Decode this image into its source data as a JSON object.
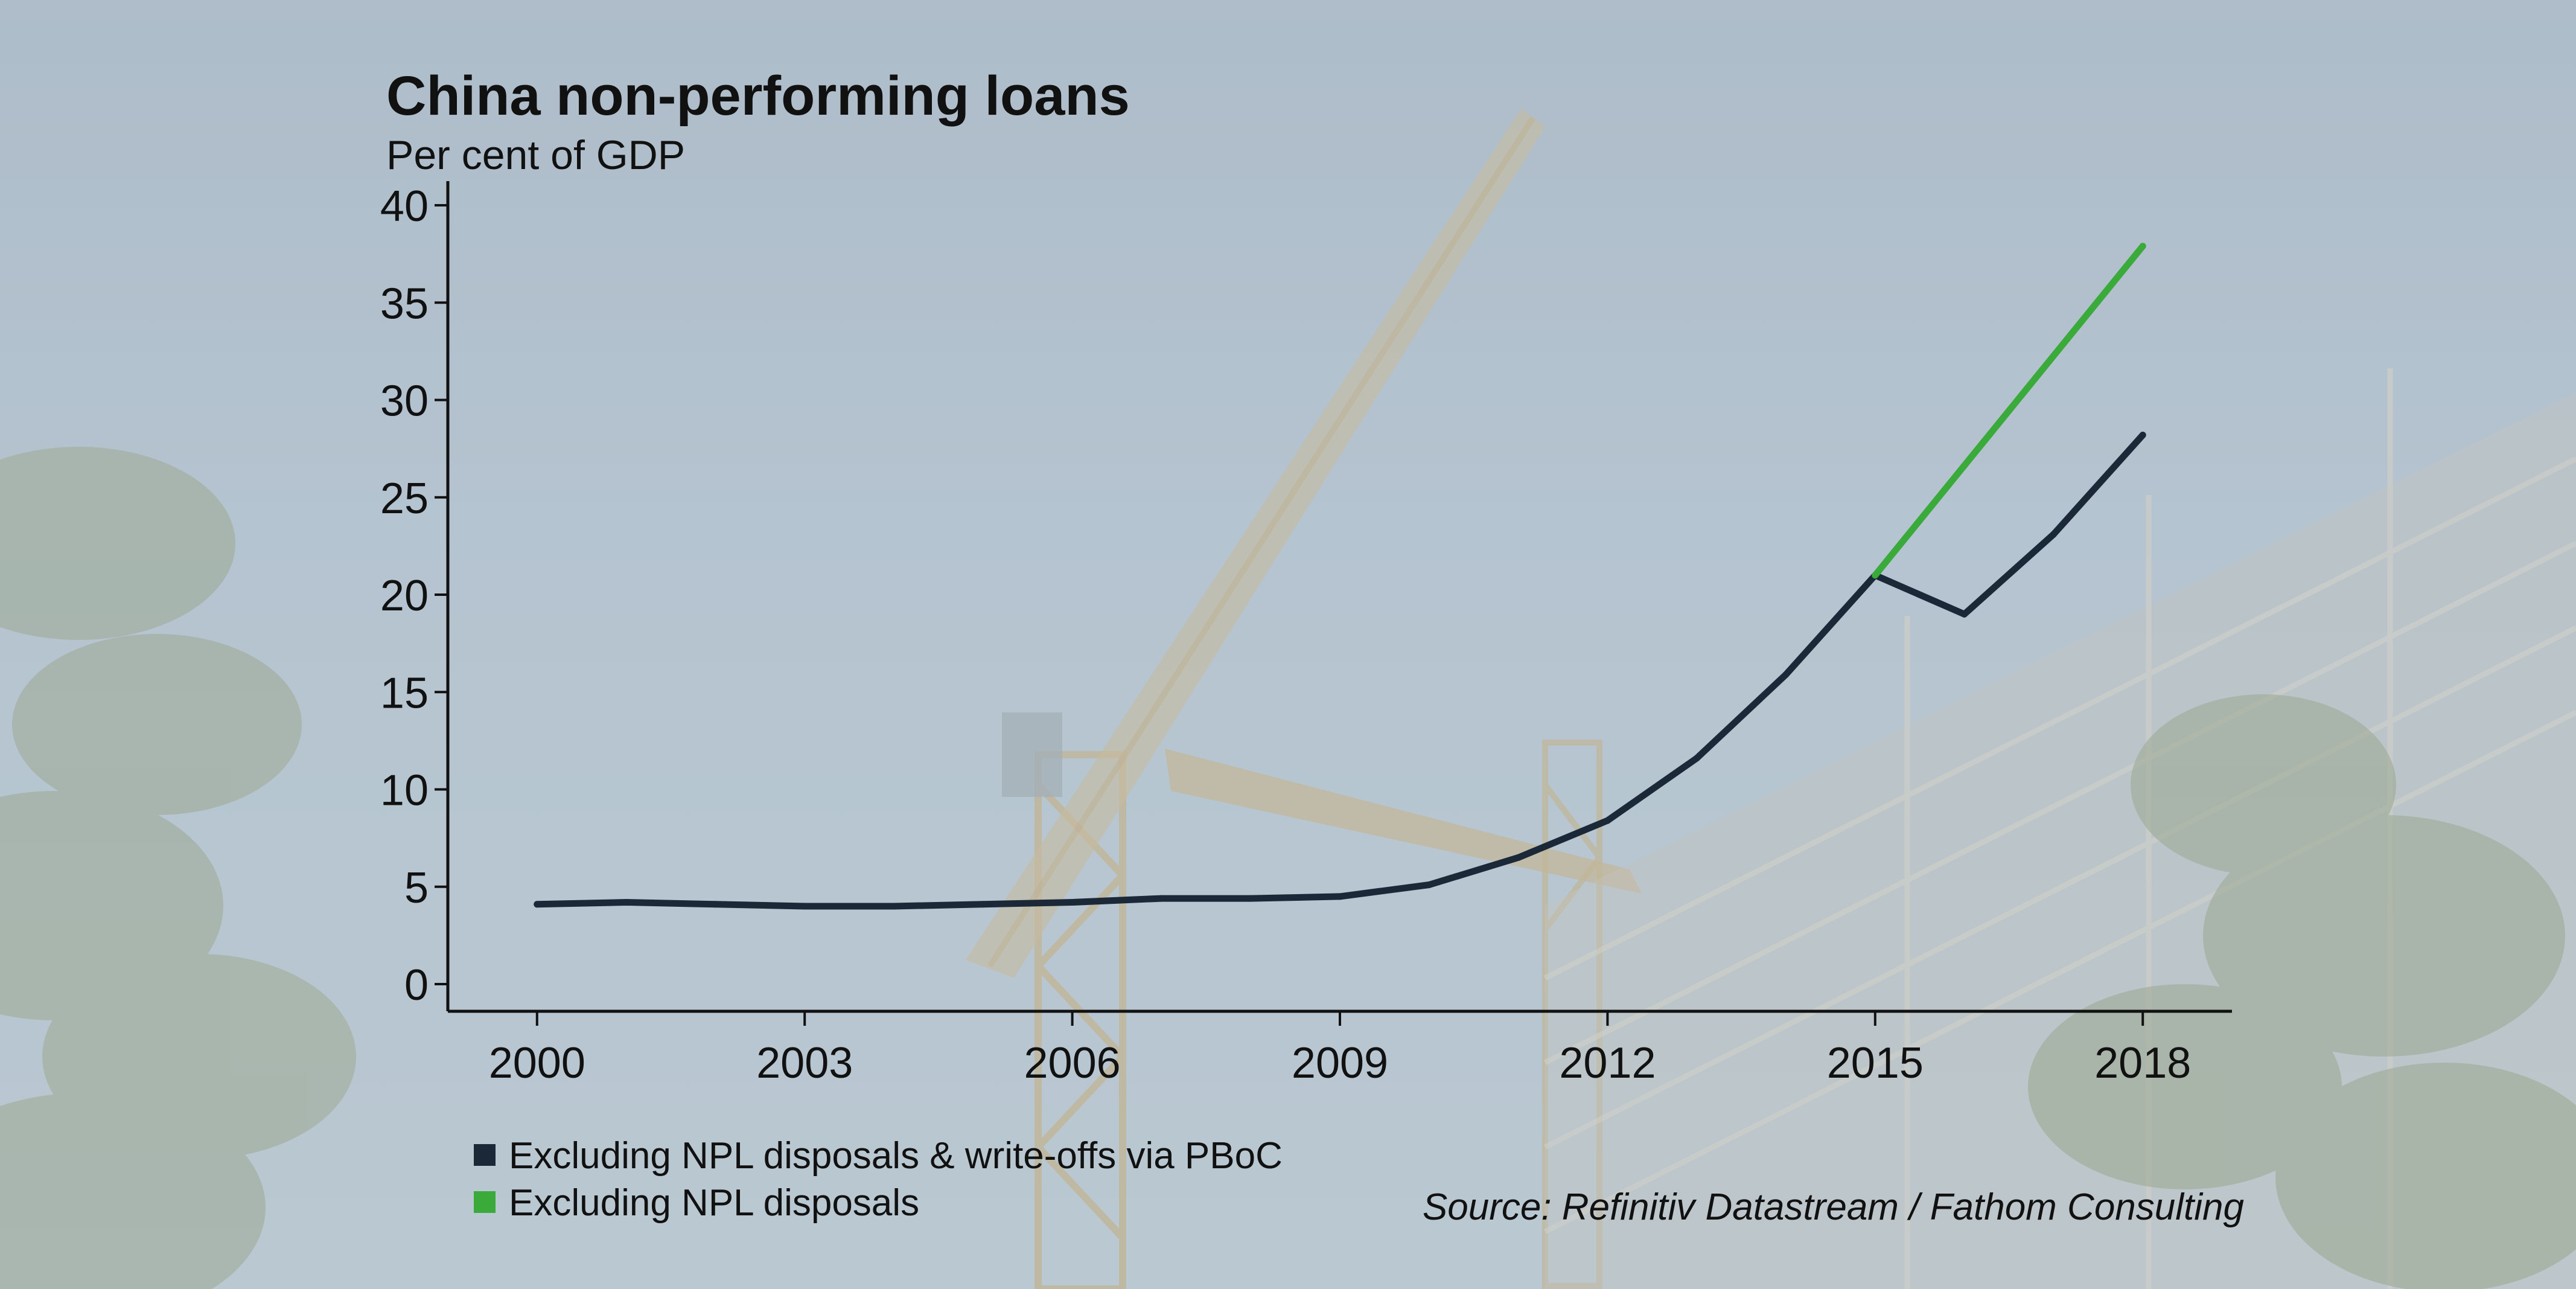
{
  "chart_data": {
    "type": "line",
    "title": "China non-performing loans",
    "subtitle": "Per cent of GDP",
    "xlabel": "",
    "ylabel": "",
    "xlim": [
      1999,
      2019
    ],
    "ylim": [
      0,
      40
    ],
    "x_ticks": [
      2000,
      2003,
      2006,
      2009,
      2012,
      2015,
      2018
    ],
    "y_ticks": [
      0,
      5,
      10,
      15,
      20,
      25,
      30,
      35,
      40
    ],
    "grid": false,
    "legend_placement": "bottom-left",
    "series": [
      {
        "name": "Excluding NPL disposals & write-offs via PBoC",
        "color": "#1b2838",
        "x": [
          2000,
          2001,
          2002,
          2003,
          2004,
          2005,
          2006,
          2007,
          2008,
          2009,
          2010,
          2011,
          2012,
          2013,
          2014,
          2015,
          2016,
          2017,
          2018
        ],
        "y": [
          4.1,
          4.2,
          4.1,
          4.0,
          4.0,
          4.1,
          4.2,
          4.4,
          4.4,
          4.5,
          5.1,
          6.5,
          8.4,
          11.6,
          15.9,
          21.0,
          19.0,
          23.1,
          28.2
        ]
      },
      {
        "name": "Excluding NPL disposals",
        "color": "#3aaa3a",
        "x": [
          2015,
          2018
        ],
        "y": [
          21.0,
          37.9
        ]
      }
    ],
    "source": "Source: Refinitiv Datastream / Fathom Consulting"
  }
}
